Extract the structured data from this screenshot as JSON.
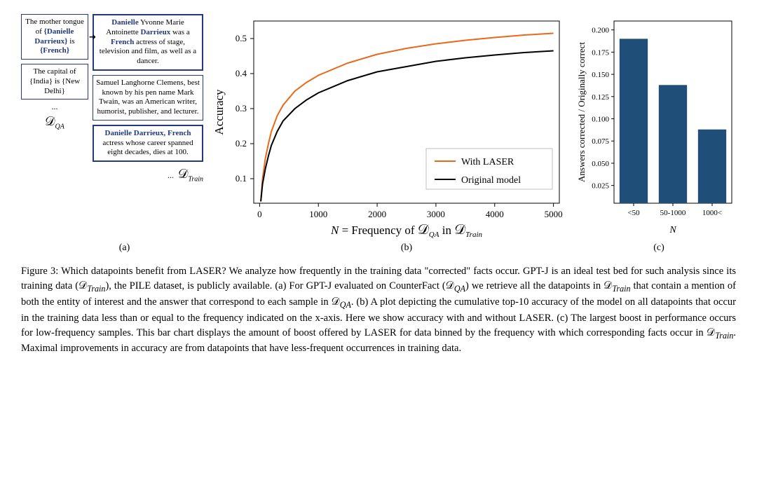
{
  "panelA": {
    "qa_box_1": "The mother tongue of <b>{Danielle Darrieux}</b> is <b>{French}</b>",
    "qa_box_2": "The capital of {India} is {New Delhi}",
    "qa_label": "𝒟<sub>QA</sub>",
    "train_box_1": "<b>Danielle</b> Yvonne Marie Antoinette <b>Darrieux</b> was a <b>French</b> actress of stage, television and film, as well as a dancer.",
    "train_box_2": "Samuel Langhorne Clemens, best known by his pen name Mark Twain, was an American writer, humorist, publisher, and lecturer.",
    "train_box_3": "<b>Danielle Darrieux, French</b> actress whose career spanned eight decades, dies at 100.",
    "train_label": "𝒟<sub>Train</sub>"
  },
  "panelB": {
    "type": "line",
    "xlabel_prefix": "N = Frequency of ",
    "xlabel_mid": "𝒟",
    "xlabel_qa": "QA",
    "xlabel_in": " in ",
    "xlabel_train": "Train",
    "ylabel": "Accuracy",
    "xlim": [
      -100,
      5100
    ],
    "ylim": [
      0.03,
      0.55
    ],
    "xticks": [
      0,
      1000,
      2000,
      3000,
      4000,
      5000
    ],
    "yticks": [
      0.1,
      0.2,
      0.3,
      0.4,
      0.5
    ],
    "tick_fontsize": 13,
    "label_fontsize": 17,
    "grid": false,
    "legend": {
      "position": "lower-right-inset",
      "items": [
        {
          "label": "With LASER",
          "color": "#e8691c"
        },
        {
          "label": "Original model",
          "color": "#000000"
        }
      ],
      "fontsize": 14
    },
    "series": [
      {
        "name": "With LASER",
        "color": "#e8691c",
        "linewidth": 2,
        "x": [
          20,
          50,
          100,
          150,
          200,
          300,
          400,
          600,
          800,
          1000,
          1500,
          2000,
          2500,
          3000,
          3500,
          4000,
          4500,
          5000
        ],
        "y": [
          0.035,
          0.1,
          0.16,
          0.2,
          0.235,
          0.28,
          0.31,
          0.35,
          0.375,
          0.395,
          0.43,
          0.455,
          0.472,
          0.485,
          0.495,
          0.503,
          0.51,
          0.515
        ]
      },
      {
        "name": "Original model",
        "color": "#000000",
        "linewidth": 2,
        "x": [
          20,
          50,
          100,
          150,
          200,
          300,
          400,
          600,
          800,
          1000,
          1500,
          2000,
          2500,
          3000,
          3500,
          4000,
          4500,
          5000
        ],
        "y": [
          0.035,
          0.085,
          0.13,
          0.165,
          0.195,
          0.235,
          0.265,
          0.3,
          0.325,
          0.345,
          0.38,
          0.405,
          0.42,
          0.435,
          0.445,
          0.453,
          0.46,
          0.465
        ]
      }
    ]
  },
  "panelC": {
    "type": "bar",
    "xlabel": "N",
    "ylabel": "Answers corrected / Originally correct",
    "categories": [
      "<50",
      "50-1000",
      "1000<"
    ],
    "values": [
      0.19,
      0.138,
      0.088
    ],
    "bar_color": "#1f4e79",
    "xlim": [
      -0.5,
      2.5
    ],
    "ylim": [
      0.005,
      0.21
    ],
    "yticks": [
      0.025,
      0.05,
      0.075,
      0.1,
      0.125,
      0.15,
      0.175,
      0.2
    ],
    "tick_fontsize": 11,
    "label_fontsize": 14,
    "bar_width": 0.72
  },
  "sublabels": {
    "a": "(a)",
    "b": "(b)",
    "c": "(c)"
  },
  "caption": {
    "text": "Figure 3: Which datapoints benefit from <span class=\"sc\">LASER</span>? We analyze how frequently in the training data \"corrected\" facts occur. GPT-J is an ideal test bed for such analysis since its training data (<span class=\"mathcal\">𝒟</span><sub><i>Train</i></sub>), the PILE dataset, is publicly available. (a) For GPT-J evaluated on CounterFact (<span class=\"mathcal\">𝒟</span><sub><i>QA</i></sub>) we retrieve all the datapoints in <span class=\"mathcal\">𝒟</span><sub><i>Train</i></sub> that contain a mention of both the entity of interest and the answer that correspond to each sample in <span class=\"mathcal\">𝒟</span><sub><i>QA</i></sub>. (b) A plot depicting the cumulative top-10 accuracy of the model on all datapoints that occur in the training data less than or equal to the frequency indicated on the x-axis. Here we show accuracy with and without <span class=\"sc\">LASER</span>. (c) The largest boost in performance occurs for low-frequency samples. This bar chart displays the amount of boost offered by <span class=\"sc\">LASER</span> for data binned by the frequency with which corresponding facts occur in <span class=\"mathcal\">𝒟</span><sub><i>Train</i></sub>. Maximal improvements in accuracy are from datapoints that have less-frequent occurrences in training data."
  }
}
